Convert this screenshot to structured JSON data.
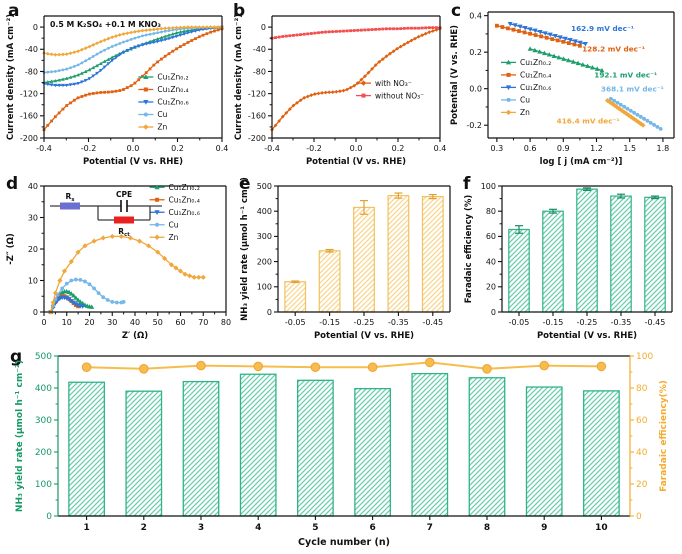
{
  "figure": {
    "panels": [
      {
        "letter": "a"
      },
      {
        "letter": "b"
      },
      {
        "letter": "c"
      },
      {
        "letter": "d"
      },
      {
        "letter": "e"
      },
      {
        "letter": "f"
      },
      {
        "letter": "g"
      }
    ]
  },
  "colors": {
    "green": "#1e9d6d",
    "orange": "#e0610f",
    "blue": "#2e75d8",
    "lightblue": "#74b7e8",
    "yellow": "#f0a83c",
    "red": "#f25050",
    "axis": "#1a1a1a",
    "bar_yellow_border": "#f2c161",
    "bar_yellow_hatch": "#f8d48b",
    "bar_yellow_err": "#e0a034",
    "bar_green_border": "#2fb389",
    "bar_green_hatch": "#66cda9",
    "bar_green_err": "#1d8a66",
    "g_line": "#f6bd4c",
    "g_line_edge": "#eda33b",
    "rs_box": "#6a6fd0",
    "rct_box": "#e8231f"
  },
  "chart_data": [
    {
      "panel": "a",
      "type": "line",
      "title": "0.5 M K₂SO₄ +0.1 M KNO₃",
      "xlabel": "Potential (V vs. RHE)",
      "ylabel": "Current density (mA cm⁻²)",
      "xlim": [
        -0.4,
        0.4
      ],
      "ylim": [
        -200,
        20
      ],
      "xticks": [
        "-0.4",
        "-0.2",
        "0.0",
        "0.2",
        "0.4"
      ],
      "yticks": [
        "0",
        "-40",
        "-80",
        "-120",
        "-160",
        "-200"
      ],
      "legend_pos": [
        0.53,
        0.5
      ],
      "dense": 48,
      "x": [
        -0.4,
        -0.35,
        -0.3,
        -0.25,
        -0.2,
        -0.15,
        -0.1,
        -0.05,
        0,
        0.05,
        0.1,
        0.15,
        0.2,
        0.25,
        0.3,
        0.35,
        0.4
      ],
      "series": [
        {
          "name": "Cu₁Zn₀.₂",
          "color_key": "green",
          "marker": "tri-up",
          "y": [
            -100,
            -97,
            -93,
            -87,
            -78,
            -67,
            -56,
            -46,
            -38,
            -30,
            -23,
            -16,
            -10,
            -6,
            -3,
            -1,
            0
          ]
        },
        {
          "name": "Cu₁Zn₀.₄",
          "color_key": "orange",
          "marker": "square",
          "y": [
            -185,
            -162,
            -142,
            -128,
            -121,
            -118,
            -117,
            -114,
            -104,
            -86,
            -66,
            -51,
            -38,
            -27,
            -17,
            -9,
            -3
          ]
        },
        {
          "name": "Cu₁Zn₀.₆",
          "color_key": "blue",
          "marker": "tri-down",
          "y": [
            -102,
            -105,
            -105,
            -102,
            -94,
            -80,
            -62,
            -47,
            -37,
            -31,
            -27,
            -22,
            -16,
            -10,
            -5,
            -2,
            0
          ]
        },
        {
          "name": "Cu",
          "color_key": "lightblue",
          "marker": "circle",
          "y": [
            -82,
            -80,
            -76,
            -69,
            -58,
            -46,
            -36,
            -28,
            -21,
            -15,
            -11,
            -7,
            -4,
            -2,
            -1,
            0,
            0
          ]
        },
        {
          "name": "Zn",
          "color_key": "yellow",
          "marker": "diamond",
          "y": [
            -47,
            -50,
            -49,
            -44,
            -36,
            -27,
            -19,
            -13,
            -9,
            -6,
            -4,
            -2,
            -1,
            0,
            0,
            0,
            0
          ]
        }
      ]
    },
    {
      "panel": "b",
      "type": "line",
      "xlabel": "Potential (V vs. RHE)",
      "ylabel": "Current density (mA cm⁻²)",
      "xlim": [
        -0.4,
        0.4
      ],
      "ylim": [
        -200,
        20
      ],
      "xticks": [
        "-0.4",
        "-0.2",
        "0.0",
        "0.2",
        "0.4"
      ],
      "yticks": [
        "0",
        "-40",
        "-80",
        "-120",
        "-160",
        "-200"
      ],
      "legend_pos": [
        0.5,
        0.55
      ],
      "dense": 48,
      "x": [
        -0.4,
        -0.35,
        -0.3,
        -0.25,
        -0.2,
        -0.15,
        -0.1,
        -0.05,
        0,
        0.05,
        0.1,
        0.15,
        0.2,
        0.25,
        0.3,
        0.35,
        0.4
      ],
      "series": [
        {
          "name": "with NO₃⁻",
          "color_key": "orange",
          "marker": "diamond",
          "y": [
            -185,
            -162,
            -142,
            -128,
            -121,
            -118,
            -117,
            -114,
            -104,
            -86,
            -66,
            -51,
            -38,
            -27,
            -17,
            -9,
            -3
          ]
        },
        {
          "name": "without NO₃⁻",
          "color_key": "red",
          "marker": "square",
          "y": [
            -20,
            -17,
            -15,
            -13,
            -11,
            -9,
            -8,
            -7,
            -6,
            -5,
            -4,
            -3,
            -3,
            -2,
            -2,
            -1,
            -1
          ]
        }
      ]
    },
    {
      "panel": "c",
      "type": "line",
      "xlabel": "log [ j (mA cm⁻²)]",
      "ylabel": "Potential (V vs. RHE)",
      "xlim": [
        0.22,
        1.9
      ],
      "ylim": [
        -0.27,
        0.42
      ],
      "xticks": [
        "0.3",
        "0.6",
        "0.9",
        "1.2",
        "1.5",
        "1.8"
      ],
      "yticks": [
        "-0.2",
        "0.0",
        "0.2",
        "0.4"
      ],
      "legend_pos": [
        0.07,
        0.4
      ],
      "dense": 16,
      "series": [
        {
          "name": "Cu₁Zn₀.₂",
          "color_key": "green",
          "marker": "tri-up",
          "x": [
            0.6,
            1.25
          ],
          "y": [
            0.218,
            0.1
          ]
        },
        {
          "name": "Cu₁Zn₀.₄",
          "color_key": "orange",
          "marker": "square",
          "x": [
            0.3,
            1.05
          ],
          "y": [
            0.345,
            0.235
          ]
        },
        {
          "name": "Cu₁Zn₀.₆",
          "color_key": "blue",
          "marker": "tri-down",
          "x": [
            0.42,
            1.1
          ],
          "y": [
            0.355,
            0.245
          ]
        },
        {
          "name": "Cu",
          "color_key": "lightblue",
          "marker": "circle",
          "x": [
            1.33,
            1.78
          ],
          "y": [
            -0.055,
            -0.22
          ]
        },
        {
          "name": "Zn",
          "color_key": "yellow",
          "marker": "diamond",
          "x": [
            1.3,
            1.62
          ],
          "y": [
            -0.065,
            -0.2
          ]
        }
      ],
      "annotations": [
        {
          "text": "162.9 mV dec⁻¹",
          "x": 0.97,
          "y": 0.315,
          "color_key": "blue"
        },
        {
          "text": "128.2 mV dec⁻¹",
          "x": 1.07,
          "y": 0.205,
          "color_key": "orange"
        },
        {
          "text": "192.1 mV dec⁻¹",
          "x": 1.18,
          "y": 0.06,
          "color_key": "green"
        },
        {
          "text": "368.1 mV dec⁻¹",
          "x": 1.24,
          "y": -0.015,
          "color_key": "lightblue"
        },
        {
          "text": "416.4 mV dec⁻¹",
          "x": 0.84,
          "y": -0.19,
          "color_key": "yellow"
        }
      ]
    },
    {
      "panel": "d",
      "type": "scatter-line",
      "xlabel": "Z′ (Ω)",
      "ylabel": "-Z″ (Ω)",
      "xlim": [
        0,
        80
      ],
      "ylim": [
        0,
        40
      ],
      "xticks": [
        "0",
        "10",
        "20",
        "30",
        "40",
        "50",
        "60",
        "70",
        "80"
      ],
      "yticks": [
        "0",
        "10",
        "20",
        "30",
        "40"
      ],
      "legend_pos": [
        0.58,
        0.01
      ],
      "inset_circuit": {
        "labels": [
          "R_s",
          "CPE",
          "R_ct"
        ]
      },
      "series": [
        {
          "name": "Cu₁Zn₀.₂",
          "color_key": "green",
          "marker": "tri-up",
          "x": [
            3,
            4,
            5,
            6,
            7,
            8,
            9,
            10,
            11,
            12,
            13,
            14,
            15,
            16,
            17,
            18,
            19,
            20,
            21
          ],
          "y": [
            0,
            2,
            3.5,
            4.8,
            5.7,
            6.2,
            6.5,
            6.5,
            6.3,
            5.8,
            5.2,
            4.5,
            3.8,
            3.2,
            2.7,
            2.2,
            1.9,
            1.7,
            1.6
          ]
        },
        {
          "name": "Cu₁Zn₀.₄",
          "color_key": "orange",
          "marker": "square",
          "x": [
            3,
            4,
            5,
            6,
            7,
            8,
            9,
            10,
            11,
            12,
            13,
            14,
            15
          ],
          "y": [
            0,
            1.8,
            3.2,
            4.2,
            4.8,
            5,
            5,
            4.7,
            4.2,
            3.5,
            2.8,
            2.2,
            1.8
          ]
        },
        {
          "name": "Cu₁Zn₀.₆",
          "color_key": "blue",
          "marker": "tri-down",
          "x": [
            3,
            4,
            5,
            6,
            7,
            8,
            9,
            10,
            11,
            12,
            13,
            14,
            15,
            16,
            17
          ],
          "y": [
            0,
            1.5,
            2.8,
            3.7,
            4.3,
            4.6,
            4.6,
            4.4,
            4,
            3.5,
            3,
            2.5,
            2.1,
            1.9,
            1.8
          ]
        },
        {
          "name": "Cu",
          "color_key": "lightblue",
          "marker": "circle",
          "x": [
            3,
            4,
            5,
            6,
            8,
            10,
            12,
            14,
            16,
            18,
            20,
            22,
            24,
            26,
            28,
            30,
            32,
            34,
            35
          ],
          "y": [
            0,
            2,
            4,
            5.5,
            7.5,
            9,
            10,
            10.3,
            10.2,
            9.7,
            8.8,
            7.5,
            6,
            4.7,
            3.8,
            3.2,
            3,
            3,
            3.2
          ]
        },
        {
          "name": "Zn",
          "color_key": "yellow",
          "marker": "diamond",
          "x": [
            3,
            4,
            5,
            7,
            9,
            12,
            15,
            18,
            22,
            26,
            30,
            34,
            38,
            42,
            46,
            50,
            53,
            56,
            58,
            60,
            62,
            64,
            66,
            68,
            70
          ],
          "y": [
            0,
            3,
            6,
            10,
            13,
            16,
            19,
            21,
            22.5,
            23.5,
            24,
            24,
            23.5,
            22.5,
            21,
            19,
            17,
            15,
            14,
            13,
            12,
            11.5,
            11,
            11,
            11
          ]
        }
      ]
    },
    {
      "panel": "e",
      "type": "bar",
      "xlabel": "Potential (V vs. RHE)",
      "ylabel": "NH₃ yield rate (μmol h⁻¹ cm⁻²)",
      "ylim": [
        0,
        500
      ],
      "yticks": [
        "0",
        "100",
        "200",
        "300",
        "400",
        "500"
      ],
      "categories": [
        "-0.05",
        "-0.15",
        "-0.25",
        "-0.35",
        "-0.45"
      ],
      "values": [
        120,
        243,
        415,
        462,
        458
      ],
      "errors": [
        3,
        5,
        27,
        10,
        8
      ],
      "bar_style": "yellow"
    },
    {
      "panel": "f",
      "type": "bar",
      "xlabel": "Potential (V vs. RHE)",
      "ylabel": "Faradaic efficiency (%)",
      "ylim": [
        0,
        100
      ],
      "yticks": [
        "0",
        "20",
        "40",
        "60",
        "80",
        "100"
      ],
      "categories": [
        "-0.05",
        "-0.15",
        "-0.25",
        "-0.35",
        "-0.45"
      ],
      "values": [
        65.5,
        80,
        97.5,
        92,
        91
      ],
      "errors": [
        3,
        1.5,
        1,
        1.5,
        1
      ],
      "bar_style": "green"
    },
    {
      "panel": "g",
      "type": "bar-line",
      "xlabel": "Cycle number (n)",
      "ylabel_left": "NH₃ yield rate (μmol h⁻¹ cm⁻²)",
      "ylabel_right": "Faradaic efficiency(%)",
      "ylim_left": [
        0,
        500
      ],
      "yticks_left": [
        "0",
        "100",
        "200",
        "300",
        "400",
        "500"
      ],
      "ylim_right": [
        0,
        100
      ],
      "yticks_right": [
        "0",
        "20",
        "40",
        "60",
        "80",
        "100"
      ],
      "categories": [
        "1",
        "2",
        "3",
        "4",
        "5",
        "6",
        "7",
        "8",
        "9",
        "10"
      ],
      "bar_values": [
        418,
        390,
        420,
        443,
        424,
        398,
        445,
        432,
        403,
        391
      ],
      "line_values": [
        93,
        92,
        94,
        93.5,
        93,
        93,
        96,
        92,
        94,
        93.5
      ],
      "bar_style": "green"
    }
  ]
}
